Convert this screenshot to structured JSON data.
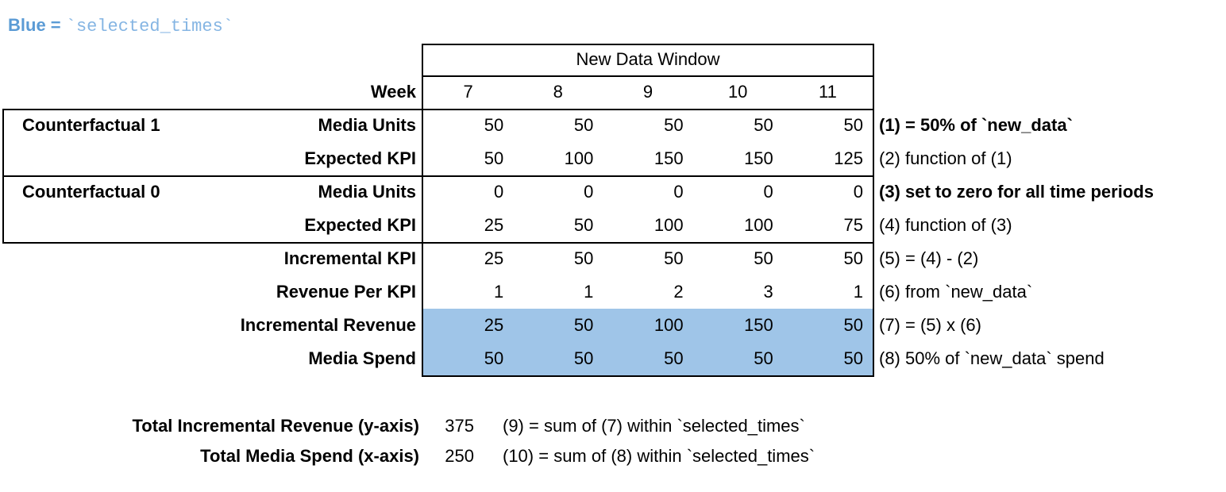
{
  "legend": {
    "prefix": "Blue = ",
    "code": "`selected_times`"
  },
  "colors": {
    "highlight_blue": "#9fc5e8",
    "legend_prefix_blue": "#5b9bd5",
    "legend_code_blue": "#85b5e3",
    "border": "#000000",
    "text": "#000000",
    "background": "#ffffff"
  },
  "chart_data": {
    "type": "table",
    "window_header": "New Data Window",
    "week_label": "Week",
    "weeks": [
      "7",
      "8",
      "9",
      "10",
      "11"
    ],
    "rows": [
      {
        "group": "Counterfactual 1",
        "label": "Media Units",
        "values": [
          "50",
          "50",
          "50",
          "50",
          "50"
        ],
        "note": "(1) = 50% of `new_data`",
        "note_bold": true,
        "highlight": false
      },
      {
        "group": "",
        "label": "Expected KPI",
        "values": [
          "50",
          "100",
          "150",
          "150",
          "125"
        ],
        "note": "(2) function of (1)",
        "note_bold": false,
        "highlight": false
      },
      {
        "group": "Counterfactual 0",
        "label": "Media Units",
        "values": [
          "0",
          "0",
          "0",
          "0",
          "0"
        ],
        "note": "(3) set to zero for all time periods",
        "note_bold": true,
        "highlight": false
      },
      {
        "group": "",
        "label": "Expected KPI",
        "values": [
          "25",
          "50",
          "100",
          "100",
          "75"
        ],
        "note": "(4) function of (3)",
        "note_bold": false,
        "highlight": false
      },
      {
        "group": "",
        "label": "Incremental KPI",
        "values": [
          "25",
          "50",
          "50",
          "50",
          "50"
        ],
        "note": "(5) = (4) - (2)",
        "note_bold": false,
        "highlight": false
      },
      {
        "group": "",
        "label": "Revenue Per KPI",
        "values": [
          "1",
          "1",
          "2",
          "3",
          "1"
        ],
        "note": "(6) from `new_data`",
        "note_bold": false,
        "highlight": false
      },
      {
        "group": "",
        "label": "Incremental Revenue",
        "values": [
          "25",
          "50",
          "100",
          "150",
          "50"
        ],
        "note": "(7) = (5) x (6)",
        "note_bold": false,
        "highlight": true
      },
      {
        "group": "",
        "label": "Media Spend",
        "values": [
          "50",
          "50",
          "50",
          "50",
          "50"
        ],
        "note": "(8) 50% of `new_data` spend",
        "note_bold": false,
        "highlight": true
      }
    ],
    "summary": [
      {
        "label": "Total Incremental Revenue (y-axis)",
        "value": "375",
        "note": "(9) = sum of (7) within `selected_times`"
      },
      {
        "label": "Total Media Spend (x-axis)",
        "value": "250",
        "note": "(10) = sum of (8) within `selected_times`"
      }
    ]
  }
}
